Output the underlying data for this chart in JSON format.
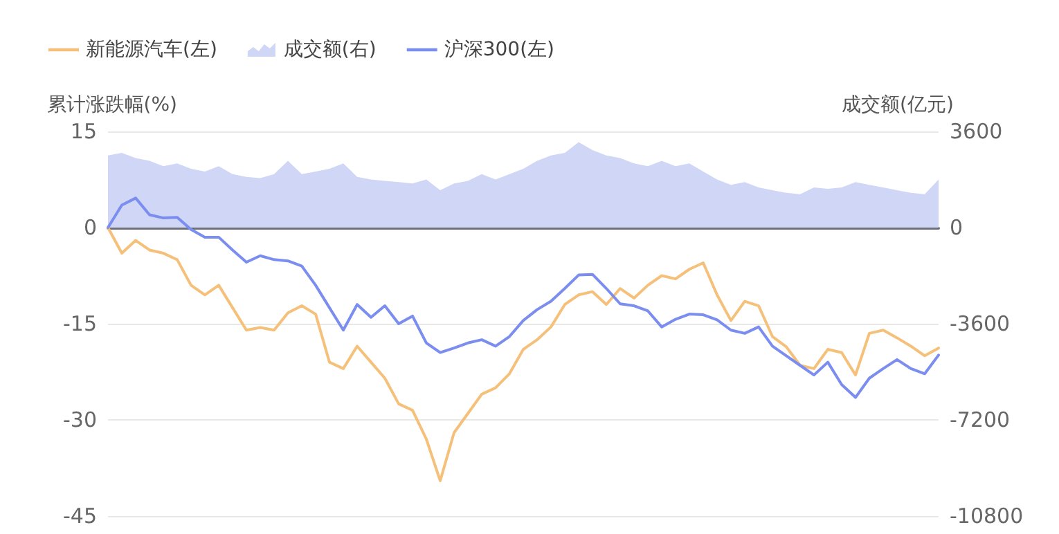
{
  "chart_data": {
    "type": "line",
    "ylabel": "累计涨跌幅(%)",
    "y2label": "成交额(亿元)",
    "categories": [
      null,
      null,
      null,
      null,
      null,
      null,
      null,
      null,
      null,
      null,
      null,
      null,
      null,
      null,
      null,
      null,
      null,
      null,
      null,
      null,
      null,
      null,
      null,
      null,
      null,
      null,
      null,
      null,
      null,
      null,
      null,
      null,
      null,
      null,
      null,
      null,
      null,
      null,
      null,
      null,
      null,
      null,
      null,
      null,
      null,
      null,
      null,
      null,
      null,
      null,
      null,
      null,
      null,
      null,
      null,
      null,
      null,
      null,
      null,
      null,
      null
    ],
    "series": [
      {
        "name": "新能源汽车(左)",
        "type": "line",
        "color": "#f5c07a",
        "values": [
          0,
          -4,
          -2,
          -3.5,
          -4,
          -5,
          -9,
          -10.5,
          -9,
          -12.5,
          -16,
          -15.6,
          -16,
          -13.3,
          -12.2,
          -13.5,
          -21,
          -22,
          -18.5,
          -21,
          -23.5,
          -27.5,
          -28.5,
          -33,
          -39.5,
          -32,
          -29,
          -26,
          -25,
          -22.8,
          -19,
          -17.5,
          -15.5,
          -12,
          -10.5,
          -10,
          -12,
          -9.5,
          -11,
          -9,
          -7.5,
          -8,
          -6.5,
          -5.5,
          -10.5,
          -14.5,
          -11.5,
          -12.2,
          -17,
          -18.6,
          -21.5,
          -22,
          -19,
          -19.5,
          -23,
          -16.5,
          -16,
          -17.2,
          -18.5,
          -20,
          -18.8
        ]
      },
      {
        "name": "成交额(右)",
        "type": "area",
        "axis": "y2",
        "color": "#d0d6f5",
        "values": [
          2700,
          2800,
          2600,
          2500,
          2300,
          2400,
          2200,
          2100,
          2300,
          2000,
          1900,
          1850,
          2000,
          2500,
          2000,
          2100,
          2200,
          2400,
          1900,
          1800,
          1750,
          1700,
          1650,
          1800,
          1400,
          1650,
          1750,
          2000,
          1800,
          2000,
          2200,
          2500,
          2700,
          2800,
          3200,
          2900,
          2700,
          2600,
          2400,
          2300,
          2500,
          2300,
          2400,
          2100,
          1800,
          1600,
          1700,
          1500,
          1400,
          1300,
          1250,
          1500,
          1450,
          1500,
          1700,
          1600,
          1500,
          1400,
          1300,
          1250,
          1800
        ]
      },
      {
        "name": "沪深300(左)",
        "type": "line",
        "color": "#7b8ef0",
        "values": [
          0,
          3.5,
          4.6,
          2,
          1.5,
          1.6,
          -0.3,
          -1.5,
          -1.5,
          -3.5,
          -5.4,
          -4.4,
          -5,
          -5.2,
          -6,
          -9,
          -12.5,
          -16,
          -12,
          -14,
          -12.2,
          -15,
          -13.8,
          -18,
          -19.5,
          -18.8,
          -18,
          -17.5,
          -18.5,
          -17,
          -14.5,
          -12.8,
          -11.5,
          -9.5,
          -7.4,
          -7.3,
          -9.5,
          -11.9,
          -12.2,
          -13,
          -15.5,
          -14.3,
          -13.5,
          -13.6,
          -14.4,
          -16,
          -16.5,
          -15.5,
          -18.5,
          -20,
          -21.5,
          -23,
          -21,
          -24.5,
          -26.5,
          -23.5,
          -22,
          -20.6,
          -22,
          -22.8,
          -19.9
        ]
      }
    ],
    "ylim": [
      -45,
      15
    ],
    "yticks": [
      -45,
      -30,
      -15,
      0,
      15
    ],
    "y2lim": [
      -10800,
      3600
    ],
    "y2ticks": [
      -10800,
      -7200,
      -3600,
      0,
      3600
    ],
    "grid": "y",
    "legend": "top left",
    "tick_labels": "y",
    "marker": "none",
    "line_style": "solid"
  }
}
